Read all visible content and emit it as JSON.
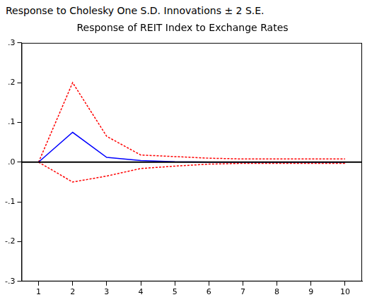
{
  "chart_data": {
    "type": "line",
    "subtitle": "Response to Cholesky One S.D. Innovations ± 2 S.E.",
    "title": "Response of REIT Index to Exchange Rates",
    "categories": [
      1,
      2,
      3,
      4,
      5,
      6,
      7,
      8,
      9,
      10
    ],
    "series": [
      {
        "color": "#0000ff",
        "line_style": "solid",
        "values": [
          0,
          0.075,
          0.012,
          0.004,
          0.001,
          0,
          0,
          0,
          0,
          0
        ]
      },
      {
        "color": "#ff0000",
        "line_style": "dashed",
        "values": [
          0,
          0.2,
          0.065,
          0.018,
          0.014,
          0.01,
          0.008,
          0.008,
          0.008,
          0.008
        ]
      },
      {
        "color": "#ff0000",
        "line_style": "dashed",
        "values": [
          0,
          -0.05,
          -0.035,
          -0.016,
          -0.01,
          -0.005,
          -0.003,
          -0.003,
          -0.003,
          -0.003
        ]
      }
    ],
    "ylim": [
      -0.3,
      0.3
    ],
    "yticks": [
      {
        "value": -0.3,
        "label": "-.3"
      },
      {
        "value": -0.2,
        "label": "-.2"
      },
      {
        "value": -0.1,
        "label": "-.1"
      },
      {
        "value": 0,
        "label": ".0"
      },
      {
        "value": 0.1,
        "label": ".1"
      },
      {
        "value": 0.2,
        "label": ".2"
      },
      {
        "value": 0.3,
        "label": ".3"
      }
    ],
    "grid": false
  }
}
